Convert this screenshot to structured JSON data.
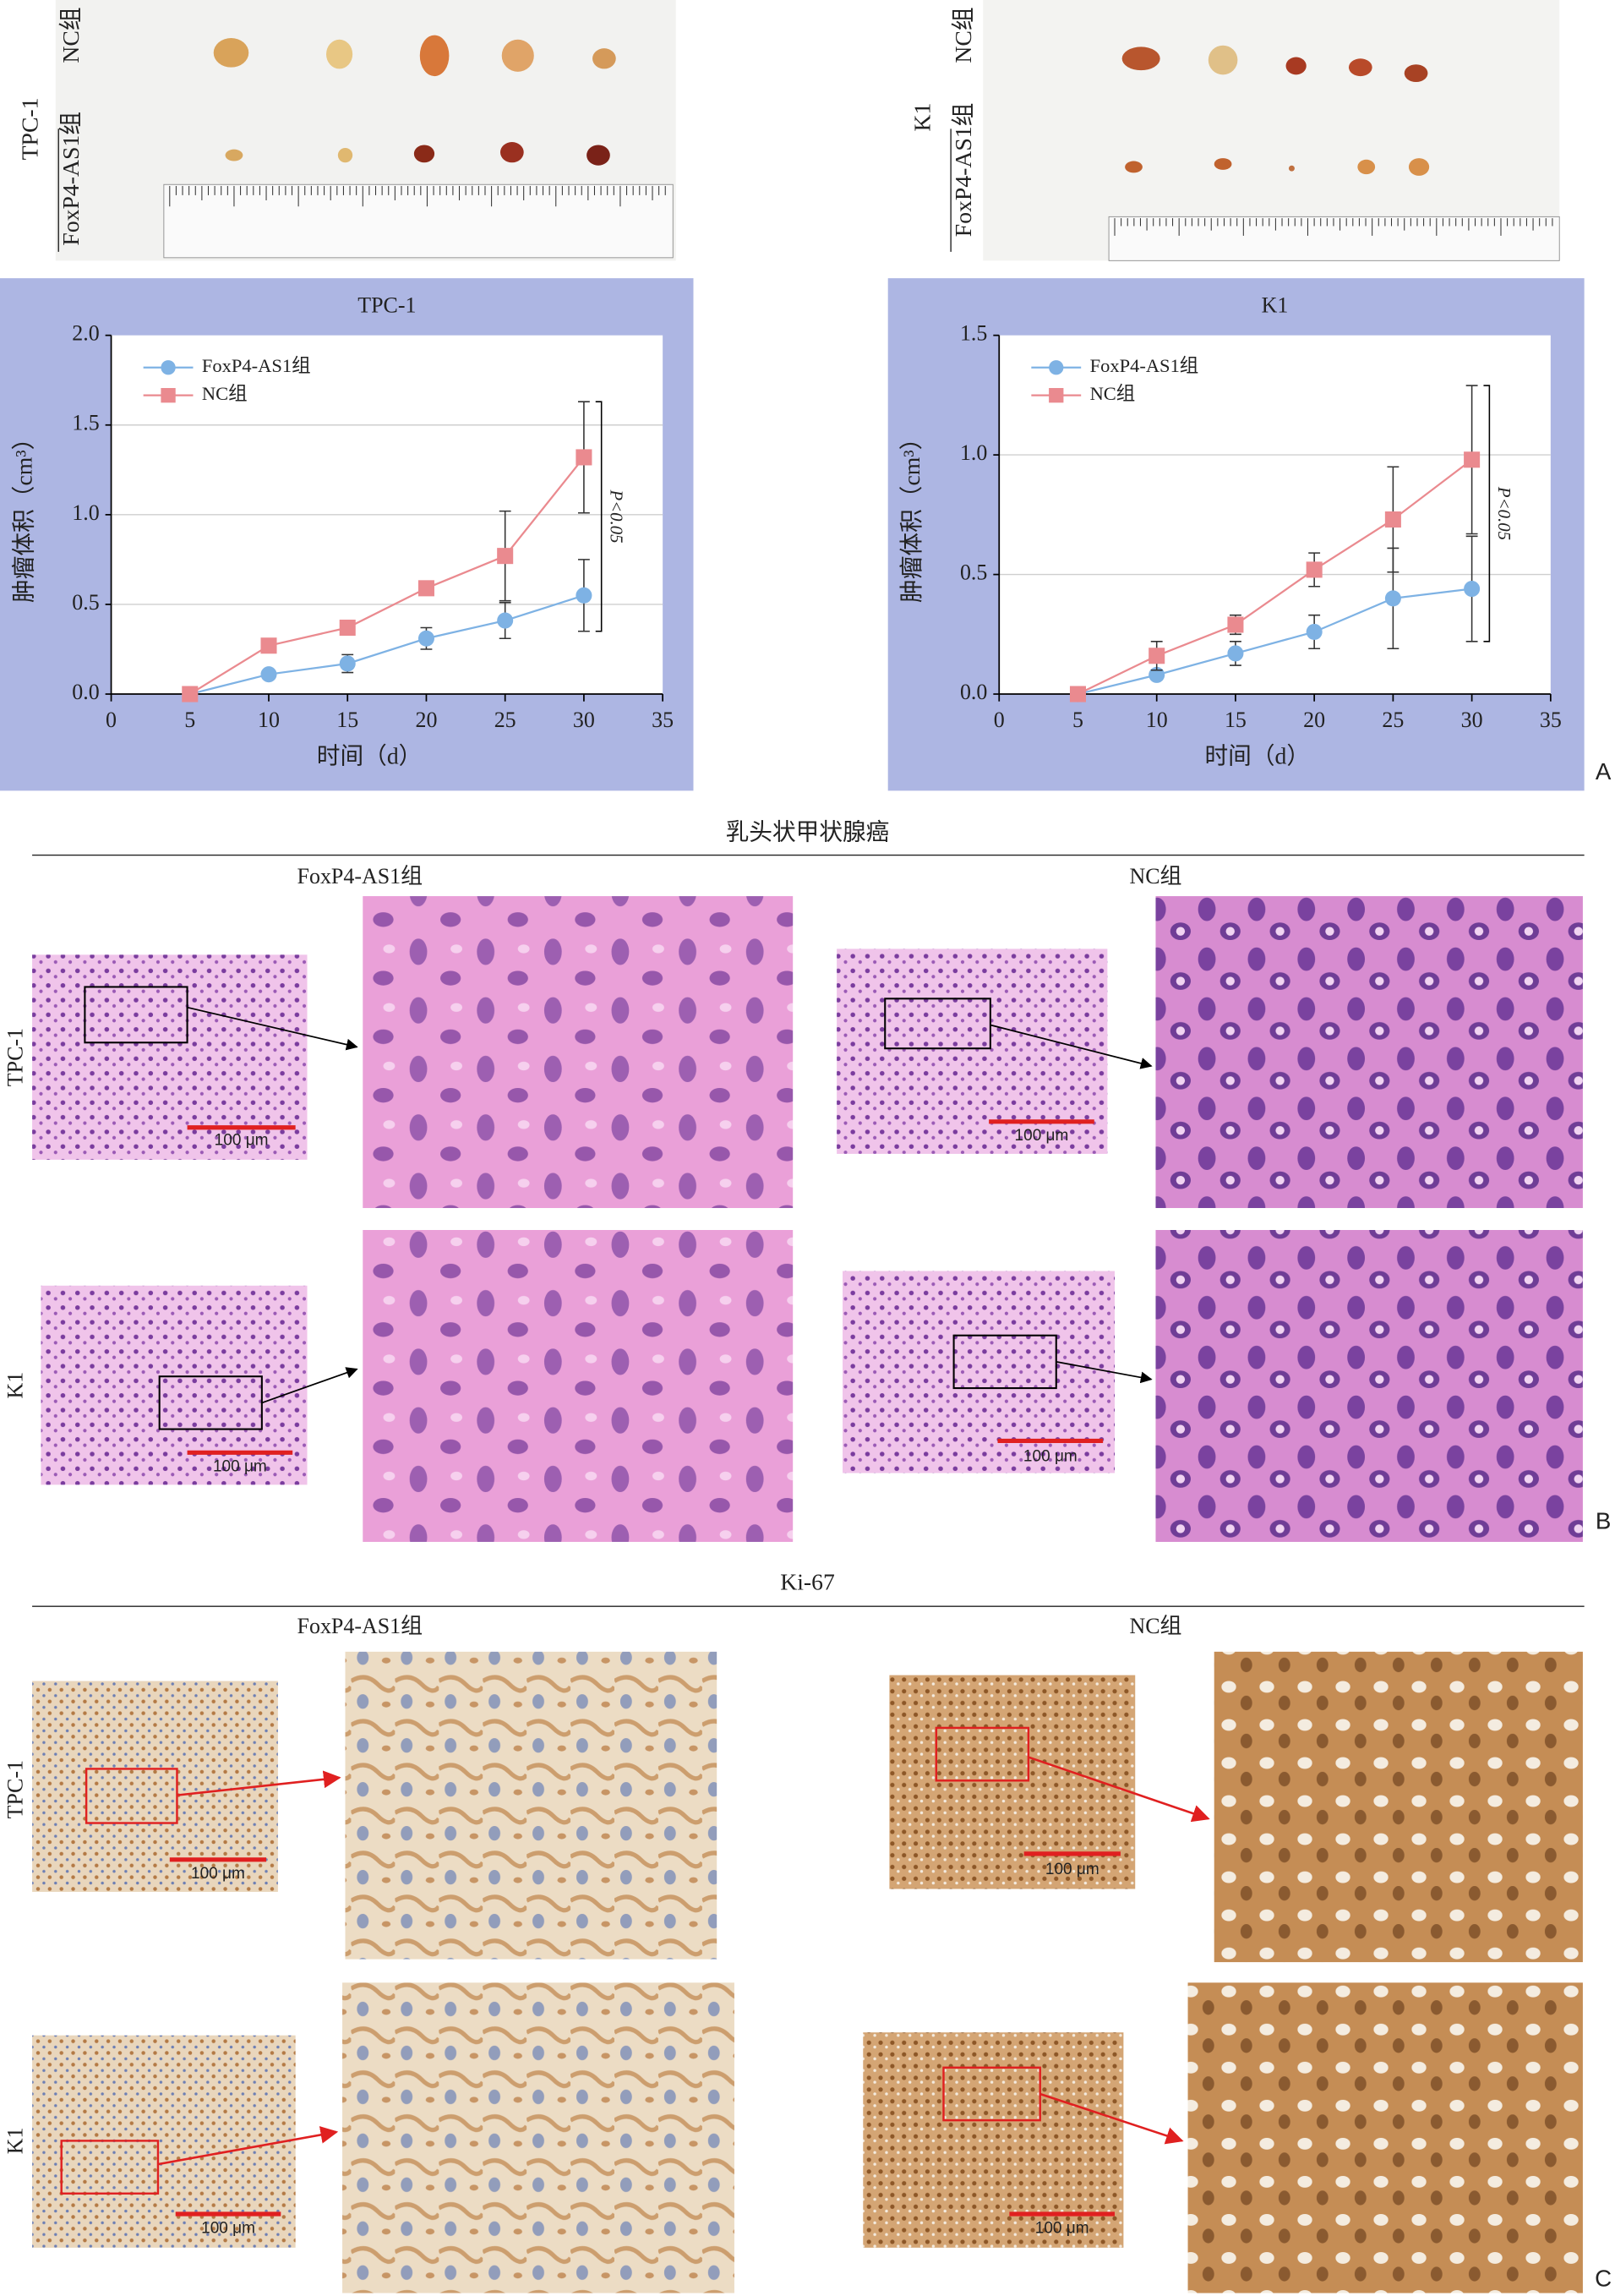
{
  "panel_labels": [
    "A",
    "B",
    "C"
  ],
  "photos": [
    {
      "cell_line": "TPC-1",
      "groups": [
        "NC组",
        "FoxP4-AS1组"
      ]
    },
    {
      "cell_line": "K1",
      "groups": [
        "NC组",
        "FoxP4-AS1组"
      ]
    }
  ],
  "chart_data": [
    {
      "type": "line",
      "title": "TPC-1",
      "x_label": "时间（d）",
      "y_label": "肿瘤体积（cm³）",
      "annotation": "P<0.05",
      "x": [
        5,
        10,
        15,
        20,
        25,
        30
      ],
      "xlim": [
        0,
        35
      ],
      "xticks": [
        0,
        5,
        10,
        15,
        20,
        25,
        30,
        35
      ],
      "ylim": [
        0,
        2
      ],
      "yticks": [
        {
          "value": 0,
          "label": "0.0"
        },
        {
          "value": 0.5,
          "label": "0.5"
        },
        {
          "value": 1,
          "label": "1.0"
        },
        {
          "value": 1.5,
          "label": "1.5"
        },
        {
          "value": 2,
          "label": "2.0"
        }
      ],
      "grid": true,
      "legend": "upper left",
      "series": [
        {
          "name": "FoxP4-AS1组",
          "color": "#7eb2e4",
          "marker": "circle",
          "values": [
            0,
            0.11,
            0.17,
            0.31,
            0.41,
            0.55
          ],
          "errors": [
            0,
            0.02,
            0.05,
            0.06,
            0.1,
            0.2
          ]
        },
        {
          "name": "NC组",
          "color": "#ea8a8f",
          "marker": "square",
          "values": [
            0,
            0.27,
            0.37,
            0.59,
            0.77,
            1.32
          ],
          "errors": [
            0,
            0.02,
            0.02,
            0.02,
            0.25,
            0.31
          ]
        }
      ]
    },
    {
      "type": "line",
      "title": "K1",
      "x_label": "时间（d）",
      "y_label": "肿瘤体积（cm³）",
      "annotation": "P<0.05",
      "x": [
        5,
        10,
        15,
        20,
        25,
        30
      ],
      "xlim": [
        0,
        35
      ],
      "xticks": [
        0,
        5,
        10,
        15,
        20,
        25,
        30,
        35
      ],
      "ylim": [
        0,
        1.5
      ],
      "yticks": [
        {
          "value": 0,
          "label": "0.0"
        },
        {
          "value": 0.5,
          "label": "0.5"
        },
        {
          "value": 1,
          "label": "1.0"
        },
        {
          "value": 1.5,
          "label": "1.5"
        }
      ],
      "grid": true,
      "legend": "upper left",
      "series": [
        {
          "name": "FoxP4-AS1组",
          "color": "#7eb2e4",
          "marker": "circle",
          "values": [
            0,
            0.08,
            0.17,
            0.26,
            0.4,
            0.44
          ],
          "errors": [
            0,
            0.02,
            0.05,
            0.07,
            0.21,
            0.22
          ]
        },
        {
          "name": "NC组",
          "color": "#ea8a8f",
          "marker": "square",
          "values": [
            0,
            0.16,
            0.29,
            0.52,
            0.73,
            0.98
          ],
          "errors": [
            0,
            0.06,
            0.04,
            0.07,
            0.22,
            0.31
          ]
        }
      ]
    }
  ],
  "he": {
    "title": "乳头状甲状腺癌",
    "columns": [
      "FoxP4-AS1组",
      "NC组"
    ],
    "rows": [
      "TPC-1",
      "K1"
    ],
    "scale_bar": "100 μm"
  },
  "ki67": {
    "title": "Ki-67",
    "columns": [
      "FoxP4-AS1组",
      "NC组"
    ],
    "rows": [
      "TPC-1",
      "K1"
    ],
    "scale_bar": "100 μm"
  }
}
